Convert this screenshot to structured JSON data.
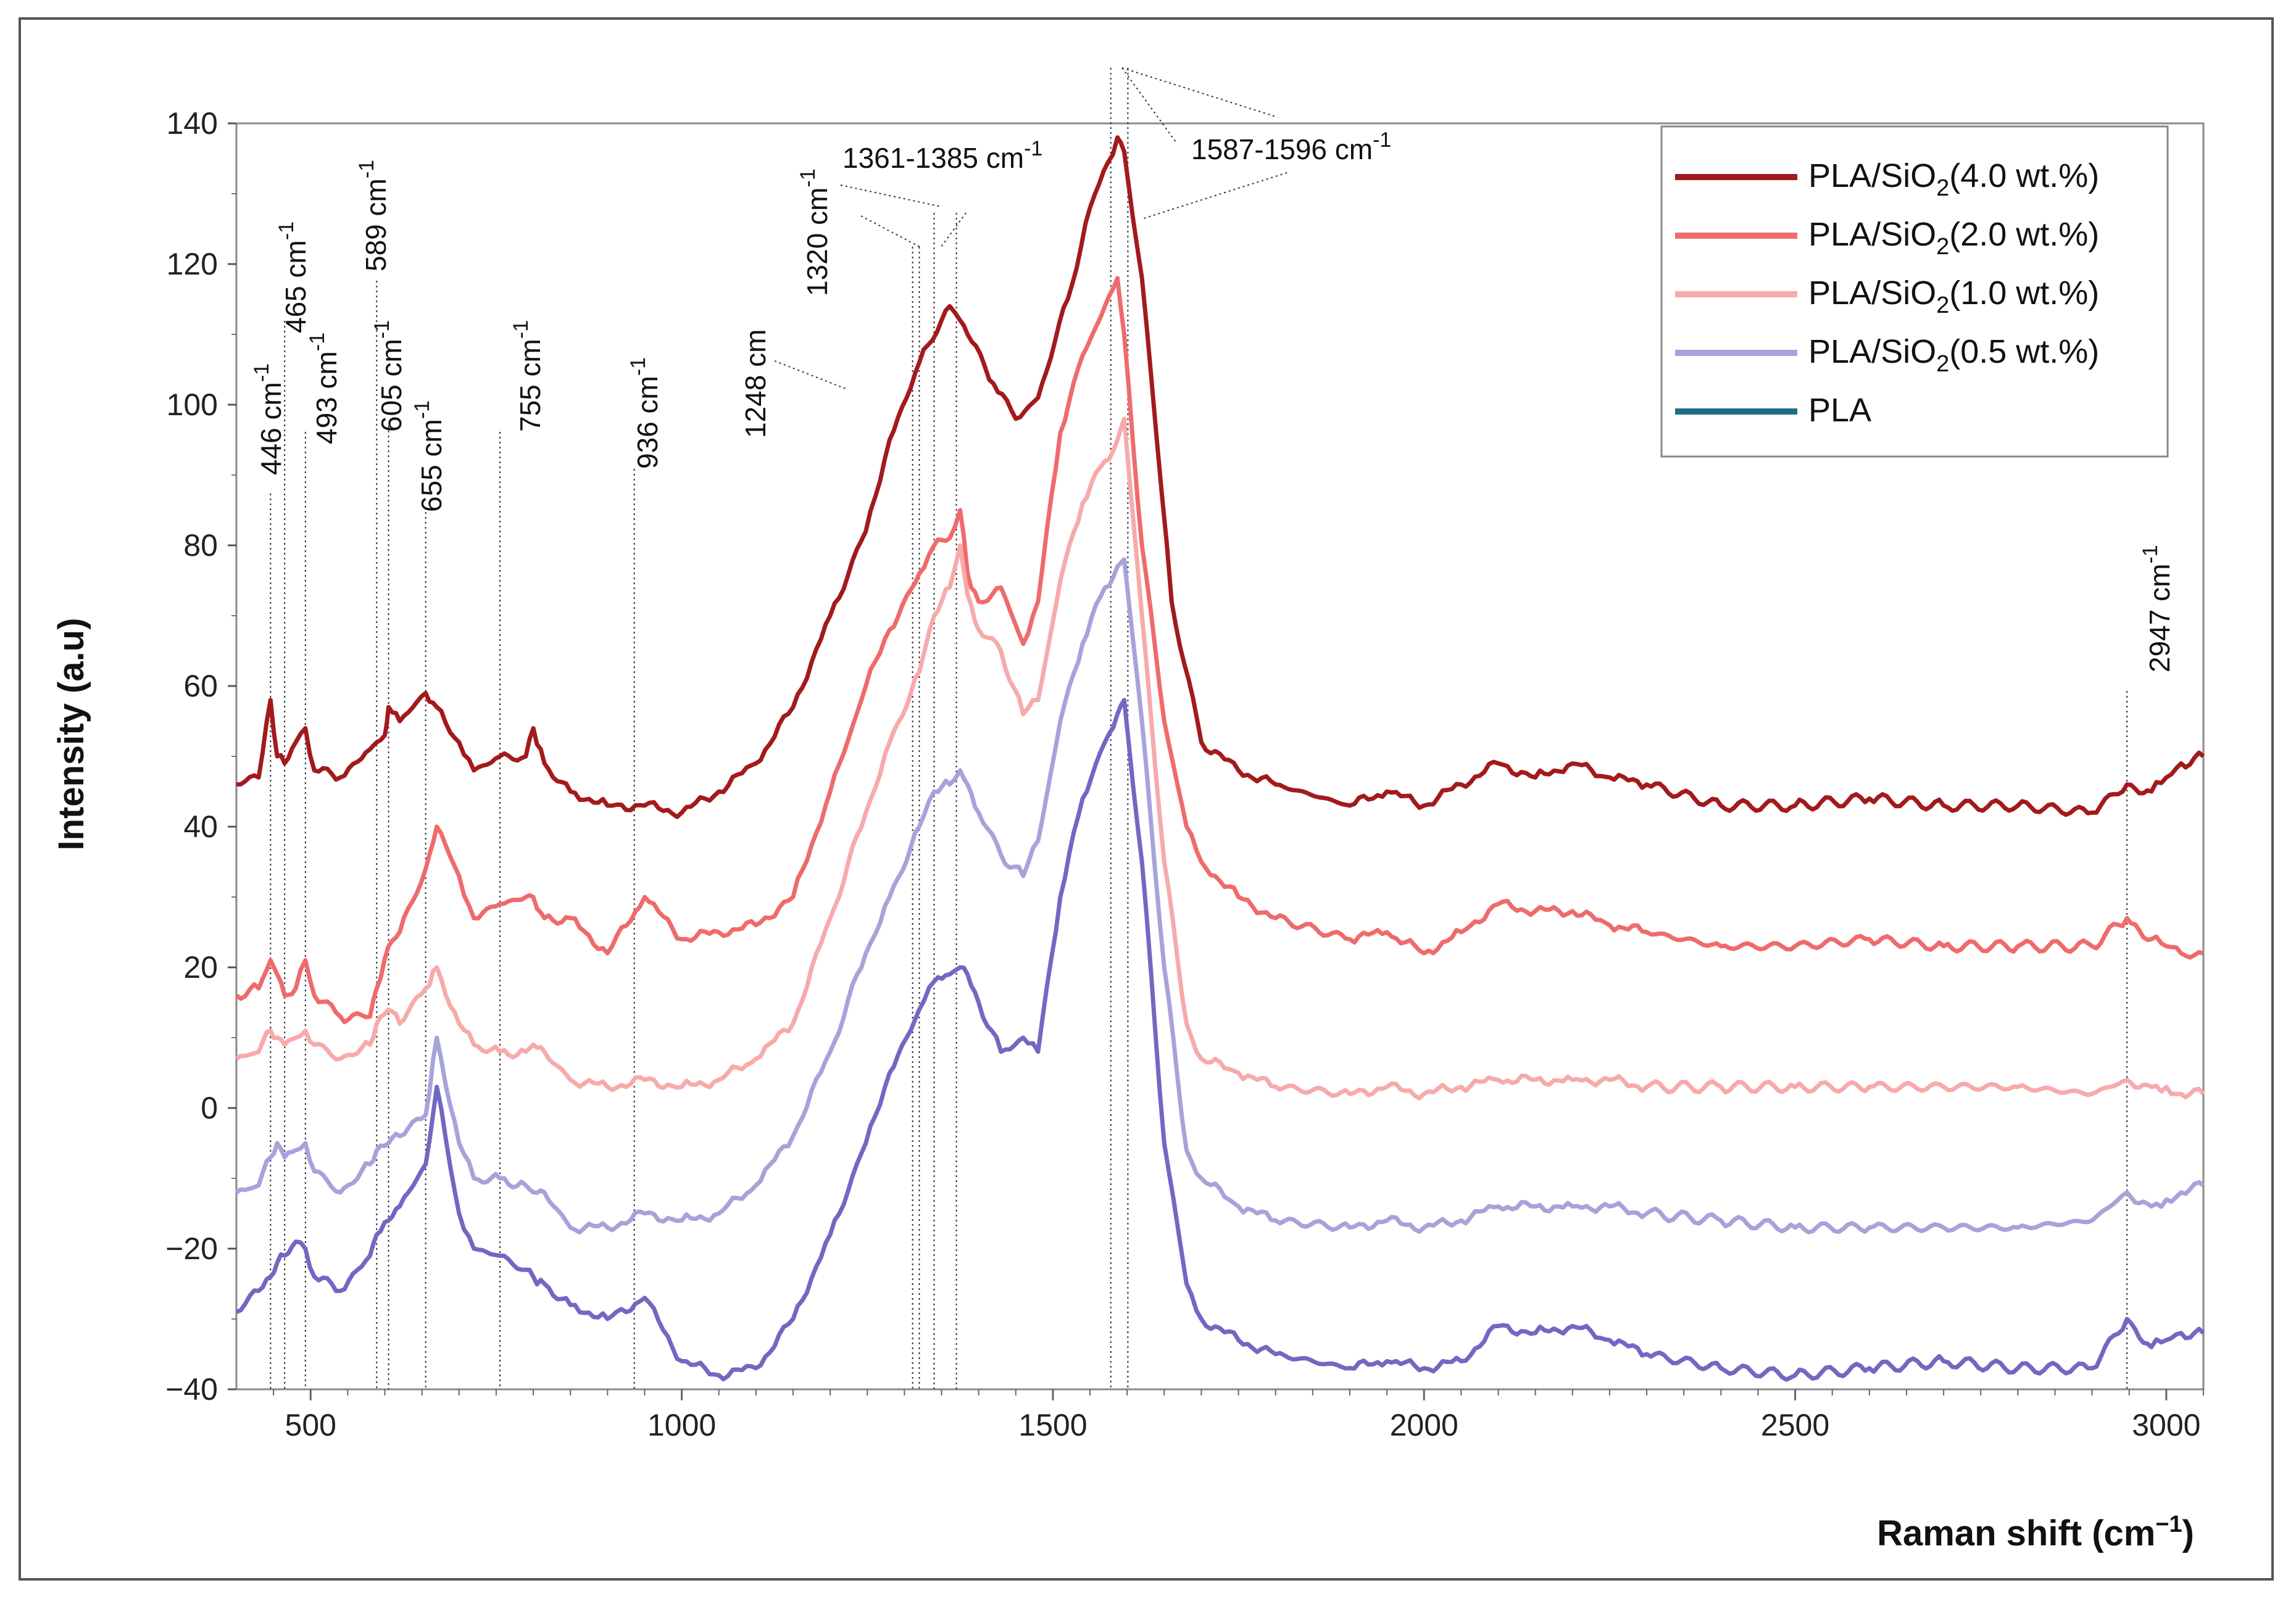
{
  "chart_data": {
    "type": "line",
    "title": "",
    "xlabel": "Raman shift (cm",
    "xlabel_sup": "−1",
    "xlabel_end": ")",
    "ylabel": "Intensity (a.u)",
    "xlim": [
      400,
      3050
    ],
    "ylim": [
      -40,
      140
    ],
    "x_ticks": [
      500,
      1000,
      1500,
      2000,
      2500,
      3000
    ],
    "x_tick_labels": [
      "500",
      "1000",
      "1500",
      "2000",
      "2500",
      "3000"
    ],
    "y_ticks": [
      -40,
      -20,
      0,
      20,
      40,
      60,
      80,
      100,
      120,
      140
    ],
    "y_tick_labels": [
      "−40",
      "−20",
      "0",
      "20",
      "40",
      "60",
      "80",
      "100",
      "120",
      "140"
    ],
    "legend_position": "top-right",
    "series": [
      {
        "name": "PLA/SiO2(4.0 wt.%)",
        "label_parts": [
          "PLA/SiO",
          "2",
          "(4.0 wt.%)"
        ],
        "color": "#a31a1c",
        "x": [
          400,
          430,
          446,
          455,
          465,
          480,
          493,
          505,
          540,
          580,
          589,
          600,
          605,
          620,
          655,
          670,
          700,
          720,
          755,
          790,
          800,
          815,
          850,
          900,
          950,
          1000,
          1050,
          1100,
          1150,
          1200,
          1248,
          1280,
          1320,
          1350,
          1361,
          1375,
          1385,
          1420,
          1450,
          1480,
          1520,
          1550,
          1587,
          1596,
          1620,
          1640,
          1660,
          1700,
          1750,
          1800,
          1900,
          1950,
          2000,
          2050,
          2100,
          2150,
          2200,
          2250,
          2300,
          2400,
          2500,
          2600,
          2700,
          2800,
          2900,
          2947,
          2980,
          3000,
          3020,
          3050
        ],
        "y": [
          46,
          47,
          58,
          50,
          49,
          52,
          54,
          48,
          47,
          51,
          52,
          53,
          57,
          55,
          59,
          57,
          52,
          48,
          50,
          50,
          54,
          49,
          45,
          43,
          43,
          42,
          45,
          49,
          57,
          70,
          82,
          95,
          106,
          112,
          114,
          112,
          110,
          103,
          98,
          101,
          115,
          128,
          138,
          136,
          118,
          95,
          72,
          52,
          48,
          46,
          43,
          45,
          43,
          46,
          49,
          47,
          49,
          47,
          46,
          43,
          43,
          44,
          43,
          43,
          42,
          46,
          45,
          47,
          49,
          50
        ]
      },
      {
        "name": "PLA/SiO2(2.0 wt.%)",
        "label_parts": [
          "PLA/SiO",
          "2",
          "(2.0 wt.%)"
        ],
        "color": "#ef6b6b",
        "x": [
          400,
          430,
          446,
          455,
          465,
          480,
          493,
          505,
          540,
          580,
          589,
          605,
          620,
          655,
          670,
          700,
          720,
          755,
          790,
          800,
          815,
          850,
          900,
          950,
          1000,
          1050,
          1100,
          1150,
          1200,
          1248,
          1280,
          1320,
          1340,
          1361,
          1375,
          1385,
          1400,
          1430,
          1460,
          1480,
          1510,
          1540,
          1570,
          1587,
          1596,
          1620,
          1650,
          1680,
          1700,
          1750,
          1800,
          1900,
          1950,
          2000,
          2050,
          2100,
          2150,
          2200,
          2250,
          2300,
          2400,
          2500,
          2600,
          2700,
          2800,
          2900,
          2947,
          2980,
          3000,
          3020,
          3050
        ],
        "y": [
          16,
          17,
          21,
          19,
          16,
          17,
          21,
          16,
          13,
          13,
          17,
          23,
          25,
          34,
          40,
          33,
          27,
          29,
          30,
          30,
          27,
          27,
          22,
          30,
          24,
          25,
          26,
          30,
          45,
          60,
          68,
          76,
          80,
          81,
          85,
          76,
          72,
          74,
          66,
          72,
          96,
          107,
          114,
          118,
          110,
          80,
          55,
          40,
          35,
          30,
          27,
          24,
          25,
          22,
          25,
          29,
          28,
          28,
          26,
          25,
          23,
          23,
          24,
          23,
          23,
          23,
          27,
          24,
          23,
          22,
          22
        ]
      },
      {
        "name": "PLA/SiO2(1.0 wt.%)",
        "label_parts": [
          "PLA/SiO",
          "2",
          "(1.0 wt.%)"
        ],
        "color": "#f7aaaa",
        "x": [
          400,
          430,
          446,
          455,
          465,
          480,
          493,
          505,
          540,
          580,
          589,
          605,
          620,
          655,
          670,
          700,
          720,
          755,
          790,
          800,
          815,
          850,
          900,
          950,
          1000,
          1050,
          1100,
          1150,
          1200,
          1248,
          1280,
          1320,
          1340,
          1361,
          1375,
          1385,
          1400,
          1430,
          1460,
          1480,
          1510,
          1540,
          1570,
          1587,
          1596,
          1620,
          1650,
          1680,
          1700,
          1750,
          1800,
          1900,
          1950,
          2000,
          2050,
          2100,
          2150,
          2200,
          2250,
          2300,
          2400,
          2500,
          2600,
          2700,
          2800,
          2900,
          2947,
          2980,
          3000,
          3020,
          3050
        ],
        "y": [
          7,
          8,
          11,
          10,
          9,
          10,
          11,
          9,
          7,
          9,
          12,
          14,
          12,
          17,
          20,
          12,
          9,
          8,
          8,
          9,
          8,
          4,
          3,
          4,
          3,
          4,
          7,
          12,
          27,
          42,
          52,
          62,
          70,
          74,
          80,
          73,
          68,
          65,
          56,
          58,
          75,
          86,
          92,
          95,
          98,
          70,
          35,
          12,
          7,
          5,
          3,
          2,
          3,
          2,
          3,
          4,
          4,
          4,
          4,
          3,
          3,
          3,
          3,
          3,
          3,
          2,
          4,
          3,
          3,
          2,
          2
        ]
      },
      {
        "name": "PLA/SiO2(0.5 wt.%)",
        "label_parts": [
          "PLA/SiO",
          "2",
          "(0.5 wt.%)"
        ],
        "color": "#a6a3db",
        "x": [
          400,
          430,
          446,
          455,
          465,
          480,
          493,
          505,
          540,
          580,
          589,
          605,
          620,
          655,
          670,
          700,
          720,
          755,
          790,
          800,
          815,
          850,
          900,
          950,
          1000,
          1050,
          1100,
          1150,
          1200,
          1248,
          1280,
          1320,
          1340,
          1361,
          1375,
          1385,
          1400,
          1430,
          1460,
          1480,
          1510,
          1540,
          1570,
          1587,
          1596,
          1620,
          1650,
          1680,
          1700,
          1750,
          1800,
          1900,
          1950,
          2000,
          2050,
          2100,
          2150,
          2200,
          2250,
          2300,
          2400,
          2500,
          2600,
          2700,
          2800,
          2900,
          2947,
          2980,
          3000,
          3020,
          3050
        ],
        "y": [
          -12,
          -11,
          -7,
          -5,
          -7,
          -6,
          -5,
          -9,
          -12,
          -8,
          -6,
          -5,
          -4,
          -1,
          10,
          -5,
          -10,
          -10,
          -11,
          -12,
          -12,
          -17,
          -17,
          -15,
          -16,
          -15,
          -11,
          -4,
          8,
          22,
          30,
          40,
          45,
          46,
          48,
          46,
          42,
          36,
          33,
          38,
          55,
          66,
          74,
          77,
          78,
          55,
          20,
          -6,
          -10,
          -14,
          -16,
          -17,
          -16,
          -17,
          -16,
          -14,
          -14,
          -14,
          -14,
          -15,
          -16,
          -17,
          -17,
          -17,
          -17,
          -16,
          -12,
          -14,
          -13,
          -12,
          -11
        ]
      },
      {
        "name": "PLA",
        "label_parts": [
          "PLA",
          "",
          ""
        ],
        "color": "#7268c2",
        "x": [
          400,
          430,
          446,
          455,
          465,
          480,
          493,
          505,
          540,
          580,
          589,
          605,
          620,
          655,
          670,
          700,
          720,
          755,
          790,
          800,
          815,
          850,
          900,
          950,
          1000,
          1050,
          1100,
          1150,
          1200,
          1248,
          1280,
          1320,
          1340,
          1361,
          1375,
          1385,
          1400,
          1430,
          1460,
          1480,
          1510,
          1540,
          1570,
          1587,
          1596,
          1620,
          1650,
          1680,
          1700,
          1750,
          1800,
          1900,
          1950,
          2000,
          2050,
          2100,
          2150,
          2200,
          2250,
          2300,
          2400,
          2500,
          2600,
          2700,
          2800,
          2900,
          2947,
          2980,
          3000,
          3020,
          3050
        ],
        "y": [
          -29,
          -26,
          -24,
          -22,
          -21,
          -19,
          -20,
          -24,
          -26,
          -21,
          -18,
          -16,
          -14,
          -8,
          3,
          -15,
          -20,
          -21,
          -23,
          -24,
          -25,
          -28,
          -30,
          -27,
          -36,
          -38,
          -37,
          -30,
          -18,
          -5,
          5,
          14,
          18,
          19,
          20,
          19,
          15,
          8,
          10,
          8,
          30,
          44,
          52,
          56,
          58,
          35,
          -5,
          -25,
          -30,
          -33,
          -35,
          -37,
          -36,
          -37,
          -36,
          -31,
          -32,
          -31,
          -33,
          -35,
          -37,
          -38,
          -37,
          -36,
          -37,
          -37,
          -30,
          -34,
          -33,
          -32,
          -32
        ]
      }
    ],
    "legend_line_colors": [
      "#a31a1c",
      "#ef6b6b",
      "#f7aaaa",
      "#a6a3db",
      "#1a6d85"
    ],
    "annotations": [
      {
        "x": 446,
        "text": "446 cm",
        "sup": "-1"
      },
      {
        "x": 465,
        "text": "465 cm",
        "sup": "-1"
      },
      {
        "x": 493,
        "text": "493 cm",
        "sup": "-1"
      },
      {
        "x": 589,
        "text": "589 cm",
        "sup": "-1"
      },
      {
        "x": 605,
        "text": "605 cm",
        "sup": "-1"
      },
      {
        "x": 655,
        "text": "655 cm",
        "sup": "-1"
      },
      {
        "x": 755,
        "text": "755 cm",
        "sup": "-1"
      },
      {
        "x": 936,
        "text": "936 cm",
        "sup": "-1"
      },
      {
        "x": 1248,
        "text": "1248 cm",
        "sup": ""
      },
      {
        "x": 1320,
        "text": "1320 cm",
        "sup": "-1"
      },
      {
        "x": 1361,
        "text": "1361-1385 cm",
        "sup": "-1"
      },
      {
        "x": 1587,
        "text": "1587-1596 cm",
        "sup": "-1"
      },
      {
        "x": 2947,
        "text": "2947 cm",
        "sup": "-1"
      }
    ]
  }
}
